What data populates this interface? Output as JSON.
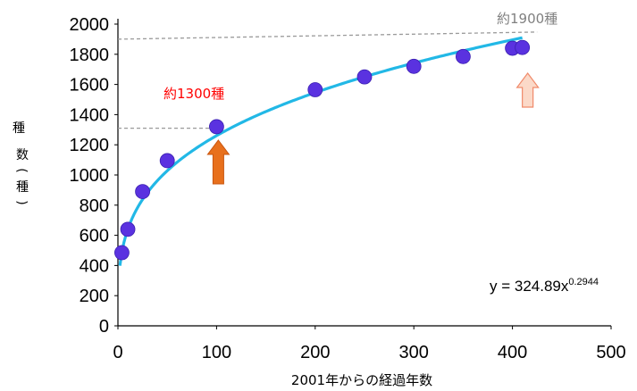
{
  "chart_data": {
    "type": "scatter",
    "title": "",
    "xlabel": "2001年からの経過年数",
    "ylabel": "種数(種)",
    "xlim": [
      0,
      500
    ],
    "ylim": [
      0,
      2000
    ],
    "x_ticks": [
      "0",
      "100",
      "200",
      "300",
      "400",
      "500"
    ],
    "y_ticks": [
      "0",
      "200",
      "400",
      "600",
      "800",
      "1000",
      "1200",
      "1400",
      "1600",
      "1800",
      "2000"
    ],
    "grid": false,
    "series": [
      {
        "type": "scatter",
        "color": "#5a32e0",
        "points": [
          {
            "x": 4,
            "y": 485
          },
          {
            "x": 10,
            "y": 640
          },
          {
            "x": 25,
            "y": 890
          },
          {
            "x": 50,
            "y": 1095
          },
          {
            "x": 100,
            "y": 1320
          },
          {
            "x": 200,
            "y": 1565
          },
          {
            "x": 250,
            "y": 1650
          },
          {
            "x": 300,
            "y": 1720
          },
          {
            "x": 350,
            "y": 1785
          },
          {
            "x": 400,
            "y": 1840
          },
          {
            "x": 410,
            "y": 1845
          }
        ]
      },
      {
        "type": "fit-curve",
        "color": "#22b8e6",
        "coefficient": 324.89,
        "exponent": 0.2944,
        "x_range": [
          2,
          410
        ]
      }
    ],
    "equation": {
      "text": "y = 324.89x",
      "exponent": "0.2944"
    },
    "annotations": [
      {
        "text": "約1300種",
        "color": "#ff0000",
        "y": 1310,
        "line_x": [
          0,
          100
        ]
      },
      {
        "text": "約1900種",
        "color": "#808080",
        "y": 1900,
        "line_x": [
          0,
          425
        ]
      }
    ],
    "arrows": [
      {
        "x": 100,
        "color": "#e8701c",
        "style": "filled"
      },
      {
        "x": 410,
        "color": "#f4b79a",
        "style": "outline"
      }
    ]
  }
}
